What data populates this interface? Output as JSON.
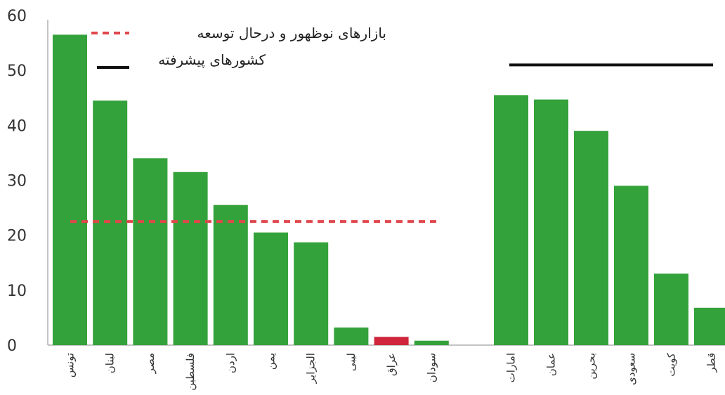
{
  "chart_data": {
    "type": "bar",
    "ylim": [
      0,
      60
    ],
    "yticks": [
      0,
      10,
      20,
      30,
      40,
      50,
      60
    ],
    "colors": {
      "bar": "#33a23a",
      "highlight": "#d0253a",
      "emerging_line": "#e0474c",
      "advanced_line": "#111111"
    },
    "legend": [
      {
        "label": "بازارهای نوظهور و درحال توسعه",
        "style": "dashed-red"
      },
      {
        "label": "کشورهای پیشرفته",
        "style": "solid-black"
      }
    ],
    "groups": [
      {
        "categories": [
          "تونس",
          "لبنان",
          "مصر",
          "فلسطین",
          "اردن",
          "یمن",
          "الجزایر",
          "لیبی",
          "عراق",
          "سودان"
        ],
        "values": [
          56.5,
          44.5,
          34,
          31.5,
          25.5,
          20.5,
          18.7,
          3.2,
          1.5,
          0.8
        ],
        "highlight": [
          "عراق"
        ],
        "reference_line": {
          "value": 22.5,
          "style": "dashed-red"
        }
      },
      {
        "categories": [
          "امارات",
          "عمان",
          "بحرین",
          "سعودی",
          "کویت",
          "قطر"
        ],
        "values": [
          45.5,
          44.7,
          39,
          29,
          13,
          6.8
        ],
        "highlight": [],
        "reference_line": {
          "value": 51,
          "style": "solid-black"
        }
      }
    ]
  }
}
